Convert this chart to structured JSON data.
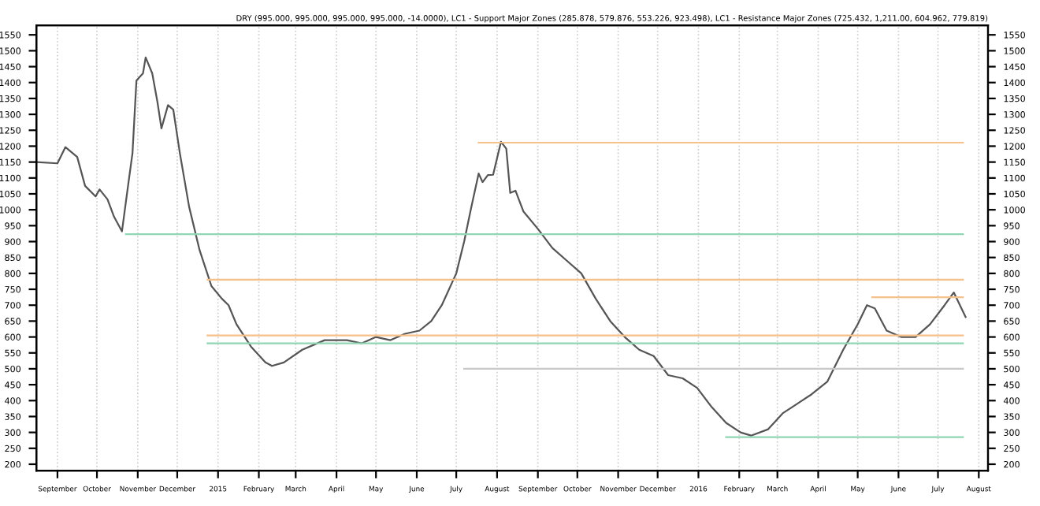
{
  "chart_data": {
    "type": "line",
    "title": "DRY (995.000, 995.000, 995.000, 995.000, -14.0000), LC1 - Support Major Zones (285.878, 579.876, 553.226, 923.498), LC1 - Resistance Major Zones (725.432, 1,211.00, 604.962, 779.819)",
    "xlim": [
      "2014-08-16",
      "2016-08-08"
    ],
    "xticks": [
      {
        "value": "2014-09-01",
        "label": "September"
      },
      {
        "value": "2014-10-01",
        "label": "October"
      },
      {
        "value": "2014-11-01",
        "label": "November"
      },
      {
        "value": "2014-12-01",
        "label": "December"
      },
      {
        "value": "2015-01-01",
        "label": "2015"
      },
      {
        "value": "2015-02-01",
        "label": "February"
      },
      {
        "value": "2015-03-01",
        "label": "March"
      },
      {
        "value": "2015-04-01",
        "label": "April"
      },
      {
        "value": "2015-05-01",
        "label": "May"
      },
      {
        "value": "2015-06-01",
        "label": "June"
      },
      {
        "value": "2015-07-01",
        "label": "July"
      },
      {
        "value": "2015-08-01",
        "label": "August"
      },
      {
        "value": "2015-09-01",
        "label": "September"
      },
      {
        "value": "2015-10-01",
        "label": "October"
      },
      {
        "value": "2015-11-01",
        "label": "November"
      },
      {
        "value": "2015-12-01",
        "label": "December"
      },
      {
        "value": "2016-01-01",
        "label": "2016"
      },
      {
        "value": "2016-02-01",
        "label": "February"
      },
      {
        "value": "2016-03-01",
        "label": "March"
      },
      {
        "value": "2016-04-01",
        "label": "April"
      },
      {
        "value": "2016-05-01",
        "label": "May"
      },
      {
        "value": "2016-06-01",
        "label": "June"
      },
      {
        "value": "2016-07-01",
        "label": "July"
      },
      {
        "value": "2016-08-01",
        "label": "August"
      }
    ],
    "ylim": [
      180,
      1580
    ],
    "yticks": [
      200,
      250,
      300,
      350,
      400,
      450,
      500,
      550,
      600,
      650,
      700,
      750,
      800,
      850,
      900,
      950,
      1000,
      1050,
      1100,
      1150,
      1200,
      1250,
      1300,
      1350,
      1400,
      1450,
      1500,
      1550
    ],
    "y2lim": [
      180,
      1580
    ],
    "y2ticks": [
      200,
      250,
      300,
      350,
      400,
      450,
      500,
      550,
      600,
      650,
      700,
      750,
      800,
      850,
      900,
      950,
      1000,
      1050,
      1100,
      1150,
      1200,
      1250,
      1300,
      1350,
      1400,
      1450,
      1500,
      1550
    ],
    "grid": "x",
    "line_style": "solid",
    "marker": "none",
    "series": [
      {
        "color": "#555555",
        "x": [
          "2014-08-16",
          "2014-09-01",
          "2014-09-07",
          "2014-09-16",
          "2014-09-22",
          "2014-09-30",
          "2014-10-03",
          "2014-10-09",
          "2014-10-14",
          "2014-10-20",
          "2014-10-25",
          "2014-10-28",
          "2014-10-31",
          "2014-11-05",
          "2014-11-07",
          "2014-11-12",
          "2014-11-16",
          "2014-11-19",
          "2014-11-24",
          "2014-11-28",
          "2014-12-03",
          "2014-12-10",
          "2014-12-18",
          "2014-12-27",
          "2015-01-04",
          "2015-01-09",
          "2015-01-15",
          "2015-01-26",
          "2015-02-06",
          "2015-02-11",
          "2015-02-20",
          "2015-03-06",
          "2015-03-23",
          "2015-04-09",
          "2015-04-20",
          "2015-05-01",
          "2015-05-12",
          "2015-05-23",
          "2015-06-03",
          "2015-06-12",
          "2015-06-20",
          "2015-07-01",
          "2015-07-07",
          "2015-07-12",
          "2015-07-18",
          "2015-07-21",
          "2015-07-25",
          "2015-07-29",
          "2015-08-04",
          "2015-08-08",
          "2015-08-11",
          "2015-08-15",
          "2015-08-21",
          "2015-09-01",
          "2015-09-12",
          "2015-09-23",
          "2015-10-04",
          "2015-10-15",
          "2015-10-26",
          "2015-11-06",
          "2015-11-17",
          "2015-11-28",
          "2015-12-09",
          "2015-12-20",
          "2015-12-31",
          "2016-01-11",
          "2016-01-22",
          "2016-02-02",
          "2016-02-10",
          "2016-02-23",
          "2016-03-05",
          "2016-03-16",
          "2016-03-27",
          "2016-04-08",
          "2016-04-20",
          "2016-05-01",
          "2016-05-08",
          "2016-05-14",
          "2016-05-23",
          "2016-06-03",
          "2016-06-14",
          "2016-06-25",
          "2016-07-06",
          "2016-07-13",
          "2016-07-22"
        ],
        "values": [
          1150,
          1146,
          1197,
          1166,
          1075,
          1042,
          1064,
          1033,
          978,
          932,
          1087,
          1178,
          1406,
          1429,
          1479,
          1429,
          1338,
          1256,
          1329,
          1315,
          1178,
          1010,
          873,
          760,
          720,
          700,
          640,
          570,
          520,
          509,
          520,
          560,
          590,
          590,
          580,
          600,
          590,
          610,
          620,
          650,
          700,
          800,
          900,
          1000,
          1114,
          1087,
          1109,
          1110,
          1214,
          1192,
          1053,
          1060,
          995,
          940,
          880,
          840,
          800,
          720,
          650,
          600,
          560,
          540,
          480,
          470,
          440,
          380,
          330,
          300,
          290,
          310,
          360,
          390,
          420,
          460,
          560,
          640,
          700,
          690,
          620,
          600,
          600,
          640,
          700,
          740,
          663
        ]
      },
      {
        "color": "#8fd6b4",
        "x": [
          "2014-10-23",
          "2016-07-20"
        ],
        "values": [
          923,
          923
        ]
      },
      {
        "color": "#f5c08a",
        "x": [
          "2014-12-24",
          "2016-07-20"
        ],
        "values": [
          780,
          780
        ]
      },
      {
        "color": "#f5c08a",
        "x": [
          "2014-12-24",
          "2016-07-20"
        ],
        "values": [
          605,
          605
        ]
      },
      {
        "color": "#8fd6b4",
        "x": [
          "2014-12-24",
          "2016-07-20"
        ],
        "values": [
          580,
          580
        ]
      },
      {
        "color": "#f5c08a",
        "x": [
          "2015-07-18",
          "2016-07-20"
        ],
        "values": [
          1211,
          1211
        ]
      },
      {
        "color": "#c8c8c8",
        "x": [
          "2015-07-07",
          "2016-07-20"
        ],
        "values": [
          500,
          500
        ]
      },
      {
        "color": "#8fd6b4",
        "x": [
          "2016-01-22",
          "2016-07-20"
        ],
        "values": [
          285,
          285
        ]
      },
      {
        "color": "#f5c08a",
        "x": [
          "2016-05-12",
          "2016-07-20"
        ],
        "values": [
          725,
          725
        ]
      }
    ]
  }
}
